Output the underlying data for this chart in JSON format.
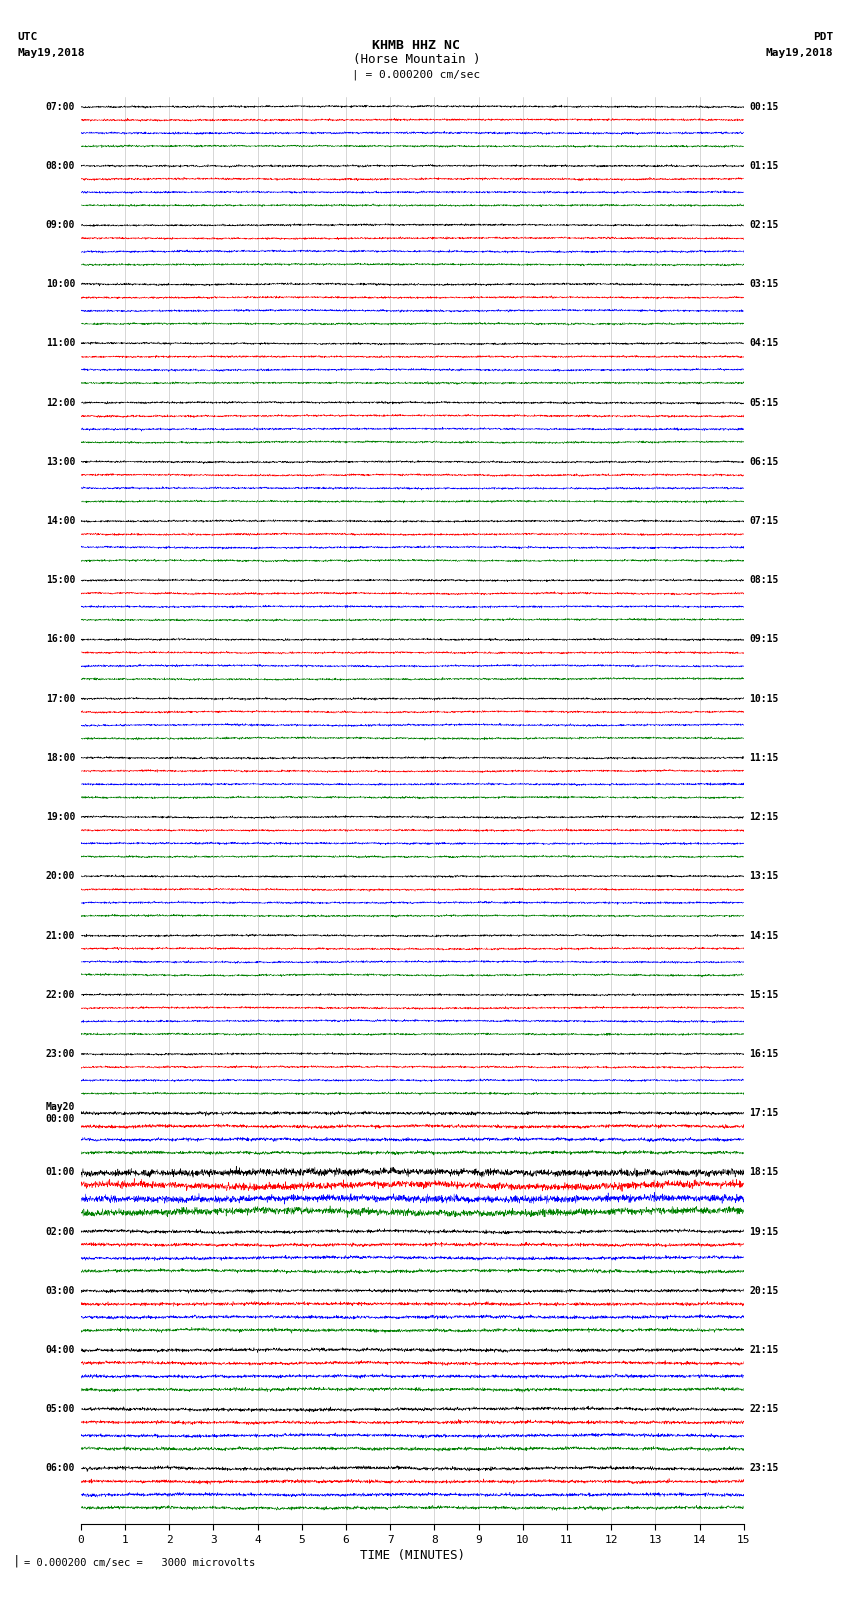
{
  "title_line1": "KHMB HHZ NC",
  "title_line2": "(Horse Mountain )",
  "scale_text": "| = 0.000200 cm/sec",
  "scale_bottom_text": "= 0.000200 cm/sec =   3000 microvolts",
  "utc_header1": "UTC",
  "utc_header2": "May19,2018",
  "pdt_header1": "PDT",
  "pdt_header2": "May19,2018",
  "xlabel": "TIME (MINUTES)",
  "x_ticks": [
    0,
    1,
    2,
    3,
    4,
    5,
    6,
    7,
    8,
    9,
    10,
    11,
    12,
    13,
    14,
    15
  ],
  "colors": [
    "black",
    "red",
    "blue",
    "green"
  ],
  "bg_color": "white",
  "trace_amplitude": 0.28,
  "noise_scale": 0.12,
  "num_rows": 24,
  "minutes_per_row": 15,
  "fig_width": 8.5,
  "fig_height": 16.13,
  "dpi": 100,
  "utc_times": [
    "07:00",
    "08:00",
    "09:00",
    "10:00",
    "11:00",
    "12:00",
    "13:00",
    "14:00",
    "15:00",
    "16:00",
    "17:00",
    "18:00",
    "19:00",
    "20:00",
    "21:00",
    "22:00",
    "23:00",
    "May20\n00:00",
    "01:00",
    "02:00",
    "03:00",
    "04:00",
    "05:00",
    "06:00"
  ],
  "pdt_times": [
    "00:15",
    "01:15",
    "02:15",
    "03:15",
    "04:15",
    "05:15",
    "06:15",
    "07:15",
    "08:15",
    "09:15",
    "10:15",
    "11:15",
    "12:15",
    "13:15",
    "14:15",
    "15:15",
    "16:15",
    "17:15",
    "18:15",
    "19:15",
    "20:15",
    "21:15",
    "22:15",
    "23:15"
  ],
  "high_amp_rows": [
    18
  ],
  "high_amp_scale": 3.5,
  "med_amp_rows": [
    17,
    19,
    20,
    21,
    22,
    23
  ],
  "med_amp_scale": 1.6,
  "grid_color": "#888888",
  "grid_linewidth": 0.4
}
